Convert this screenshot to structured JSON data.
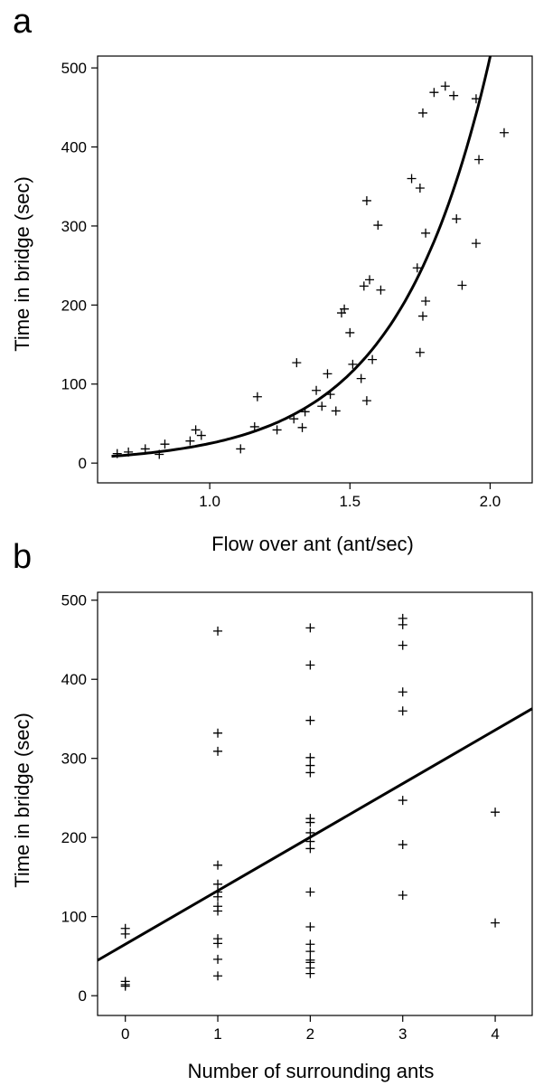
{
  "chart_data": [
    {
      "type": "scatter",
      "panel_label": "a",
      "xlabel": "Flow over ant (ant/sec)",
      "ylabel": "Time in bridge (sec)",
      "xlim": [
        0.6,
        2.15
      ],
      "ylim": [
        -25,
        515
      ],
      "xticks": [
        1.0,
        1.5,
        2.0
      ],
      "xtick_labels": [
        "1.0",
        "1.5",
        "2.0"
      ],
      "yticks": [
        0,
        100,
        200,
        300,
        400,
        500
      ],
      "ytick_labels": [
        "0",
        "100",
        "200",
        "300",
        "400",
        "500"
      ],
      "marker": "+",
      "points": [
        [
          0.67,
          12
        ],
        [
          0.71,
          14
        ],
        [
          0.77,
          18
        ],
        [
          0.82,
          11
        ],
        [
          0.84,
          24
        ],
        [
          0.93,
          28
        ],
        [
          0.95,
          42
        ],
        [
          0.97,
          35
        ],
        [
          1.11,
          18
        ],
        [
          1.16,
          46
        ],
        [
          1.17,
          84
        ],
        [
          1.24,
          42
        ],
        [
          1.3,
          56
        ],
        [
          1.31,
          127
        ],
        [
          1.33,
          45
        ],
        [
          1.34,
          65
        ],
        [
          1.38,
          92
        ],
        [
          1.4,
          72
        ],
        [
          1.42,
          113
        ],
        [
          1.43,
          87
        ],
        [
          1.45,
          66
        ],
        [
          1.47,
          190
        ],
        [
          1.48,
          195
        ],
        [
          1.5,
          165
        ],
        [
          1.51,
          125
        ],
        [
          1.54,
          107
        ],
        [
          1.55,
          224
        ],
        [
          1.56,
          79
        ],
        [
          1.56,
          332
        ],
        [
          1.57,
          232
        ],
        [
          1.58,
          131
        ],
        [
          1.6,
          301
        ],
        [
          1.61,
          219
        ],
        [
          1.72,
          360
        ],
        [
          1.74,
          247
        ],
        [
          1.75,
          140
        ],
        [
          1.75,
          348
        ],
        [
          1.76,
          443
        ],
        [
          1.76,
          186
        ],
        [
          1.77,
          291
        ],
        [
          1.77,
          205
        ],
        [
          1.8,
          469
        ],
        [
          1.84,
          477
        ],
        [
          1.87,
          465
        ],
        [
          1.88,
          309
        ],
        [
          1.9,
          225
        ],
        [
          1.95,
          278
        ],
        [
          1.95,
          461
        ],
        [
          1.96,
          384
        ],
        [
          2.05,
          418
        ]
      ],
      "fit": {
        "type": "exponential",
        "a": 1.2,
        "b": 3.03
      }
    },
    {
      "type": "scatter",
      "panel_label": "b",
      "xlabel": "Number of surrounding ants",
      "ylabel": "Time in bridge (sec)",
      "xlim": [
        -0.3,
        4.4
      ],
      "ylim": [
        -25,
        510
      ],
      "xticks": [
        0,
        1,
        2,
        3,
        4
      ],
      "xtick_labels": [
        "0",
        "1",
        "2",
        "3",
        "4"
      ],
      "yticks": [
        0,
        100,
        200,
        300,
        400,
        500
      ],
      "ytick_labels": [
        "0",
        "100",
        "200",
        "300",
        "400",
        "500"
      ],
      "marker": "+",
      "points": [
        [
          0,
          85
        ],
        [
          0,
          78
        ],
        [
          0,
          18
        ],
        [
          0,
          14
        ],
        [
          0,
          12
        ],
        [
          1,
          461
        ],
        [
          1,
          332
        ],
        [
          1,
          309
        ],
        [
          1,
          165
        ],
        [
          1,
          141
        ],
        [
          1,
          131
        ],
        [
          1,
          125
        ],
        [
          1,
          113
        ],
        [
          1,
          107
        ],
        [
          1,
          72
        ],
        [
          1,
          66
        ],
        [
          1,
          46
        ],
        [
          1,
          25
        ],
        [
          2,
          465
        ],
        [
          2,
          418
        ],
        [
          2,
          348
        ],
        [
          2,
          301
        ],
        [
          2,
          291
        ],
        [
          2,
          282
        ],
        [
          2,
          224
        ],
        [
          2,
          219
        ],
        [
          2,
          206
        ],
        [
          2,
          195
        ],
        [
          2,
          186
        ],
        [
          2,
          131
        ],
        [
          2,
          87
        ],
        [
          2,
          65
        ],
        [
          2,
          56
        ],
        [
          2,
          45
        ],
        [
          2,
          42
        ],
        [
          2,
          35
        ],
        [
          2,
          28
        ],
        [
          3,
          477
        ],
        [
          3,
          469
        ],
        [
          3,
          443
        ],
        [
          3,
          384
        ],
        [
          3,
          360
        ],
        [
          3,
          247
        ],
        [
          3,
          191
        ],
        [
          3,
          127
        ],
        [
          4,
          232
        ],
        [
          4,
          92
        ]
      ],
      "fit": {
        "type": "linear",
        "intercept": 65,
        "slope": 67.7
      }
    }
  ]
}
